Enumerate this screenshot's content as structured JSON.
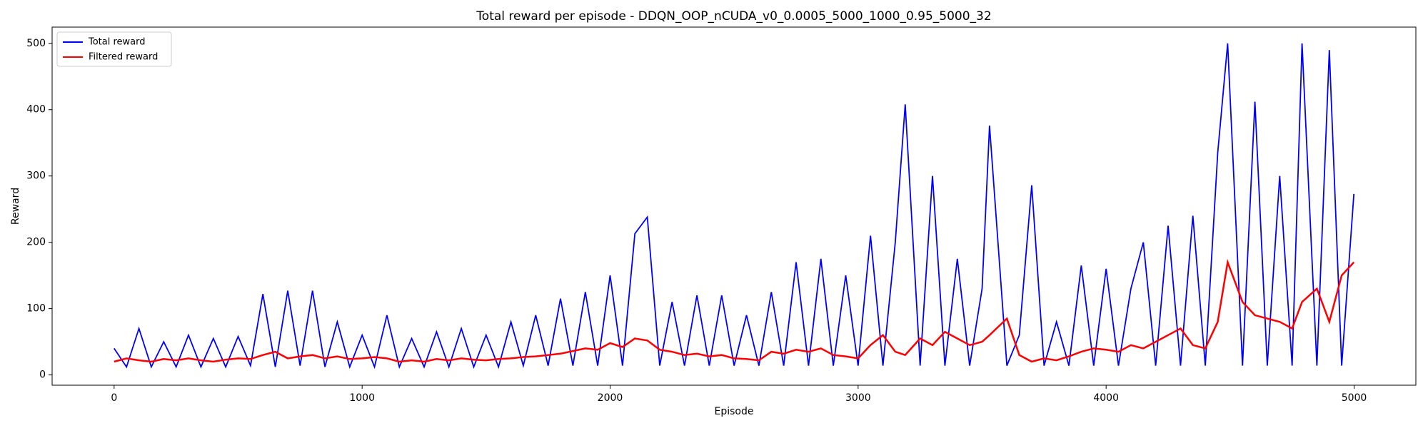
{
  "chart_data": {
    "type": "line",
    "title": "Total reward per episode - DDQN_OOP_nCUDA_v0_0.0005_5000_1000_0.95_5000_32",
    "xlabel": "Episode",
    "ylabel": "Reward",
    "x": [
      0,
      50,
      100,
      150,
      200,
      250,
      300,
      350,
      400,
      450,
      500,
      550,
      600,
      650,
      700,
      750,
      800,
      850,
      900,
      950,
      1000,
      1050,
      1100,
      1150,
      1200,
      1250,
      1300,
      1350,
      1400,
      1450,
      1500,
      1550,
      1600,
      1650,
      1700,
      1750,
      1800,
      1850,
      1900,
      1950,
      2000,
      2050,
      2100,
      2150,
      2200,
      2250,
      2300,
      2350,
      2400,
      2450,
      2500,
      2550,
      2600,
      2650,
      2700,
      2750,
      2800,
      2850,
      2900,
      2950,
      3000,
      3050,
      3100,
      3150,
      3190,
      3250,
      3300,
      3350,
      3400,
      3450,
      3500,
      3530,
      3600,
      3650,
      3700,
      3750,
      3800,
      3850,
      3900,
      3950,
      4000,
      4050,
      4100,
      4150,
      4200,
      4250,
      4300,
      4350,
      4400,
      4450,
      4490,
      4550,
      4600,
      4650,
      4700,
      4750,
      4790,
      4850,
      4900,
      4950,
      4999
    ],
    "series": [
      {
        "name": "Total reward",
        "color": "#0000ff",
        "values": [
          40,
          12,
          70,
          12,
          50,
          12,
          60,
          12,
          55,
          12,
          58,
          14,
          122,
          12,
          127,
          14,
          127,
          12,
          80,
          12,
          60,
          12,
          90,
          12,
          55,
          12,
          65,
          12,
          70,
          12,
          60,
          12,
          80,
          14,
          90,
          14,
          115,
          14,
          125,
          14,
          150,
          14,
          213,
          238,
          14,
          110,
          14,
          120,
          14,
          120,
          14,
          90,
          14,
          125,
          14,
          170,
          14,
          175,
          14,
          150,
          14,
          210,
          14,
          200,
          408,
          14,
          300,
          14,
          175,
          14,
          130,
          376,
          14,
          60,
          286,
          14,
          80,
          14,
          165,
          14,
          160,
          14,
          130,
          200,
          14,
          225,
          14,
          240,
          14,
          335,
          500,
          14,
          412,
          14,
          300,
          14,
          500,
          14,
          490,
          14,
          273
        ]
      },
      {
        "name": "Filtered reward",
        "color": "#ff0000",
        "values": [
          20,
          25,
          22,
          20,
          24,
          22,
          25,
          22,
          20,
          23,
          25,
          24,
          30,
          35,
          25,
          28,
          30,
          25,
          28,
          24,
          25,
          27,
          25,
          20,
          22,
          20,
          24,
          22,
          25,
          23,
          22,
          24,
          25,
          27,
          28,
          30,
          32,
          36,
          40,
          38,
          48,
          42,
          55,
          52,
          38,
          35,
          30,
          32,
          28,
          30,
          25,
          24,
          22,
          35,
          32,
          38,
          35,
          40,
          30,
          28,
          25,
          45,
          60,
          35,
          30,
          55,
          45,
          65,
          55,
          45,
          50,
          60,
          85,
          30,
          20,
          25,
          22,
          28,
          35,
          40,
          38,
          35,
          45,
          40,
          50,
          60,
          70,
          45,
          40,
          80,
          170,
          110,
          90,
          85,
          80,
          70,
          110,
          130,
          80,
          150,
          170
        ]
      }
    ],
    "xlim": [
      -250,
      5249
    ],
    "xticks": [
      0,
      1000,
      2000,
      3000,
      4000,
      5000
    ],
    "ylim": [
      -15.5,
      524.5
    ],
    "yticks": [
      0,
      100,
      200,
      300,
      400,
      500
    ],
    "legend": "upper left"
  }
}
